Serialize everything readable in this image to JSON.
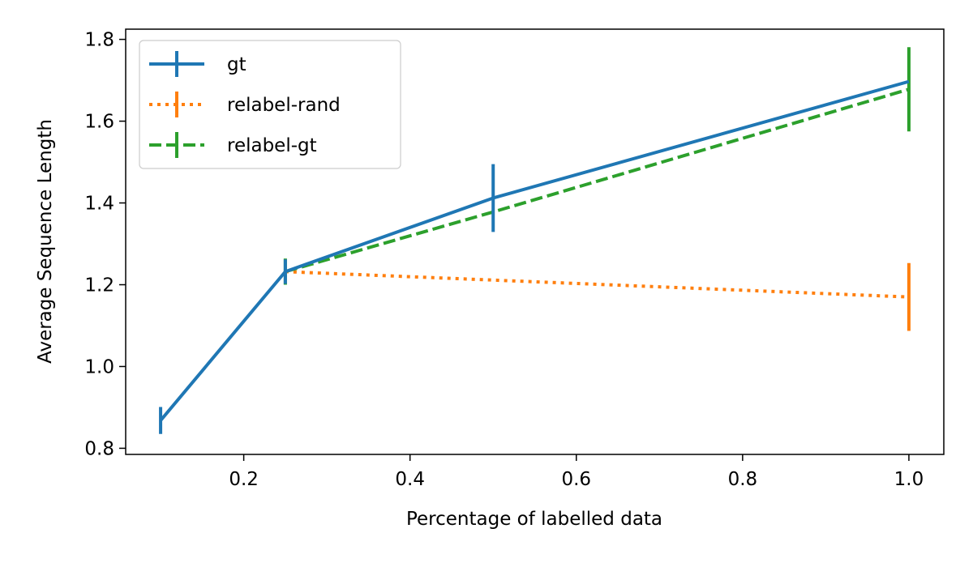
{
  "chart_data": {
    "type": "line",
    "title": "",
    "xlabel": "Percentage of labelled data",
    "ylabel": "Average Sequence Length",
    "xlim": [
      0.058,
      1.042
    ],
    "ylim": [
      0.785,
      1.825
    ],
    "xticks": [
      0.2,
      0.4,
      0.6,
      0.8,
      1.0
    ],
    "xtick_labels": [
      "0.2",
      "0.4",
      "0.6",
      "0.8",
      "1.0"
    ],
    "yticks": [
      0.8,
      1.0,
      1.2,
      1.4,
      1.6,
      1.8
    ],
    "ytick_labels": [
      "0.8",
      "1.0",
      "1.2",
      "1.4",
      "1.6",
      "1.8"
    ],
    "grid": false,
    "legend_position": "top-left",
    "series": [
      {
        "name": "gt",
        "color": "#1f77b4",
        "style": "solid",
        "x": [
          0.1,
          0.25,
          0.5,
          1.0
        ],
        "y": [
          0.868,
          1.232,
          1.412,
          1.697
        ],
        "err": [
          0.033,
          0.03,
          0.083,
          0.0
        ]
      },
      {
        "name": "relabel-rand",
        "color": "#ff7f0e",
        "style": "dotted",
        "x": [
          0.25,
          1.0
        ],
        "y": [
          1.232,
          1.17
        ],
        "err": [
          0.0,
          0.083
        ]
      },
      {
        "name": "relabel-gt",
        "color": "#2ca02c",
        "style": "dashed",
        "x": [
          0.25,
          0.5,
          1.0
        ],
        "y": [
          1.232,
          1.378,
          1.678
        ],
        "err": [
          0.032,
          0.0,
          0.103
        ]
      }
    ]
  }
}
